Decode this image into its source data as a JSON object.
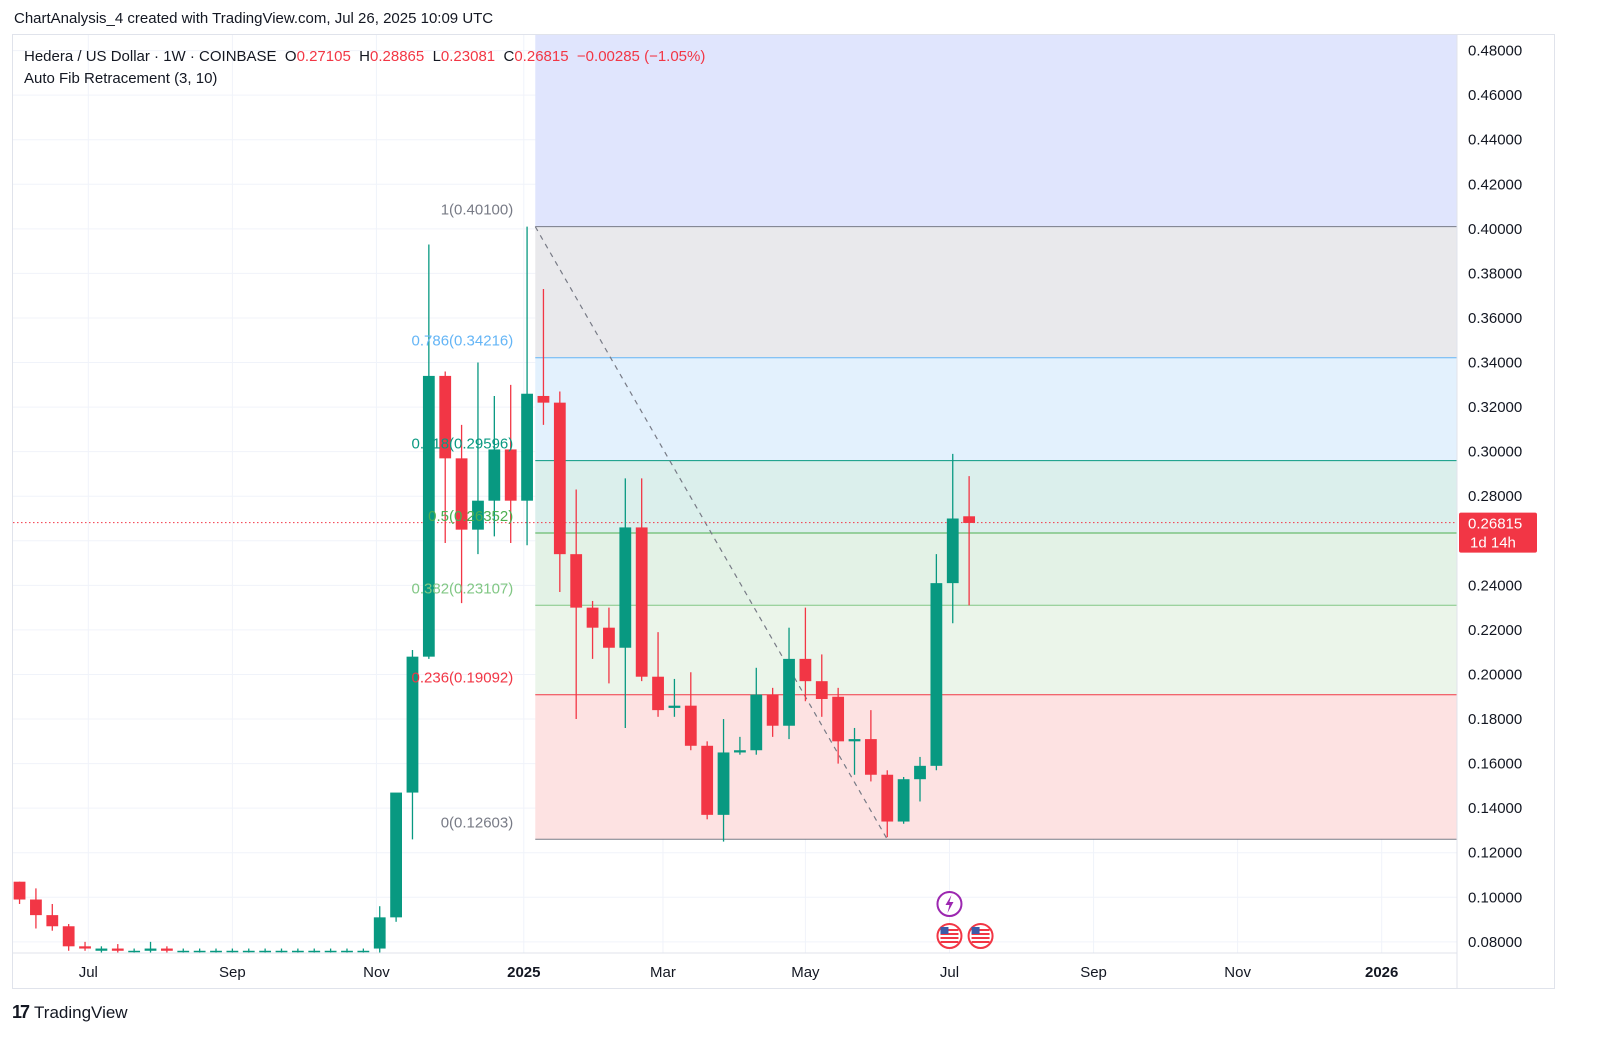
{
  "caption": "ChartAnalysis_4 created with TradingView.com, Jul 26, 2025 10:09 UTC",
  "legend": {
    "symbol": "Hedera / US Dollar · 1W · COINBASE",
    "o_label": "O",
    "o_value": "0.27105",
    "h_label": "H",
    "h_value": "0.28865",
    "l_label": "L",
    "l_value": "0.23081",
    "c_label": "C",
    "c_value": "0.26815",
    "change": "−0.00285 (−1.05%)",
    "indicator": "Auto Fib Retracement (3, 10)"
  },
  "branding": {
    "name": "TradingView",
    "logo_mark": "17"
  },
  "colors": {
    "up": "#089981",
    "down": "#f23645",
    "grid": "#f0f3fa",
    "axis_text": "#131722",
    "fib_ext": "#e0e5fd",
    "fib_1": "#e9e9ec",
    "fib_786": "#e3f1fd",
    "fib_618": "#dbefec",
    "fib_5": "#e3f2e6",
    "fib_382": "#ebf5ea",
    "fib_236": "#fde2e2"
  },
  "chart_data": {
    "type": "candlestick",
    "y_axis": {
      "min": 0.075,
      "max": 0.487,
      "ticks": [
        "0.48000",
        "0.46000",
        "0.44000",
        "0.42000",
        "0.40000",
        "0.38000",
        "0.36000",
        "0.34000",
        "0.32000",
        "0.30000",
        "0.28000",
        "0.26000",
        "0.24000",
        "0.22000",
        "0.20000",
        "0.18000",
        "0.16000",
        "0.14000",
        "0.12000",
        "0.10000",
        "0.08000"
      ],
      "tick_values": [
        0.48,
        0.46,
        0.44,
        0.42,
        0.4,
        0.38,
        0.36,
        0.34,
        0.32,
        0.3,
        0.28,
        0.26,
        0.24,
        0.22,
        0.2,
        0.18,
        0.16,
        0.14,
        0.12,
        0.1,
        0.08
      ]
    },
    "x_axis": {
      "ticks": [
        {
          "label": "Jul",
          "week": 4.2,
          "bold": false
        },
        {
          "label": "Sep",
          "week": 13.0,
          "bold": false
        },
        {
          "label": "Nov",
          "week": 21.8,
          "bold": false
        },
        {
          "label": "2025",
          "week": 30.8,
          "bold": true
        },
        {
          "label": "Mar",
          "week": 39.3,
          "bold": false
        },
        {
          "label": "May",
          "week": 48.0,
          "bold": false
        },
        {
          "label": "Jul",
          "week": 56.8,
          "bold": false
        },
        {
          "label": "Sep",
          "week": 65.6,
          "bold": false
        },
        {
          "label": "Nov",
          "week": 74.4,
          "bold": false
        },
        {
          "label": "2026",
          "week": 83.2,
          "bold": true
        }
      ],
      "week_min": -0.4,
      "week_max": 87.8
    },
    "current_price": {
      "value": 0.26815,
      "label": "0.26815",
      "countdown": "1d 14h"
    },
    "fib": {
      "start_week": 31.5,
      "end_week": 87.5,
      "levels": [
        {
          "ratio": "1",
          "price": 0.401,
          "label": "1(0.40100)",
          "color": "#787b86"
        },
        {
          "ratio": "0.786",
          "price": 0.34216,
          "label": "0.786(0.34216)",
          "color": "#64b5f6"
        },
        {
          "ratio": "0.618",
          "price": 0.29596,
          "label": "0.618(0.29596)",
          "color": "#089981"
        },
        {
          "ratio": "0.5",
          "price": 0.26352,
          "label": "0.5(0.26352)",
          "color": "#4caf50"
        },
        {
          "ratio": "0.382",
          "price": 0.23107,
          "label": "0.382(0.23107)",
          "color": "#81c784"
        },
        {
          "ratio": "0.236",
          "price": 0.19092,
          "label": "0.236(0.19092)",
          "color": "#f23645"
        },
        {
          "ratio": "0",
          "price": 0.12603,
          "label": "0(0.12603)",
          "color": "#787b86"
        }
      ],
      "trend_from": {
        "week": 31.5,
        "price": 0.401
      },
      "trend_to": {
        "week": 53.0,
        "price": 0.12603
      }
    },
    "candles": [
      {
        "o": 0.107,
        "h": 0.107,
        "l": 0.097,
        "c": 0.099
      },
      {
        "o": 0.099,
        "h": 0.104,
        "l": 0.086,
        "c": 0.092
      },
      {
        "o": 0.092,
        "h": 0.097,
        "l": 0.085,
        "c": 0.087
      },
      {
        "o": 0.087,
        "h": 0.088,
        "l": 0.076,
        "c": 0.078
      },
      {
        "o": 0.078,
        "h": 0.08,
        "l": 0.076,
        "c": 0.077
      },
      {
        "o": 0.076,
        "h": 0.078,
        "l": 0.075,
        "c": 0.077
      },
      {
        "o": 0.077,
        "h": 0.079,
        "l": 0.075,
        "c": 0.076
      },
      {
        "o": 0.076,
        "h": 0.077,
        "l": 0.075,
        "c": 0.076
      },
      {
        "o": 0.076,
        "h": 0.08,
        "l": 0.075,
        "c": 0.077
      },
      {
        "o": 0.077,
        "h": 0.078,
        "l": 0.075,
        "c": 0.076
      },
      {
        "o": 0.076,
        "h": 0.077,
        "l": 0.075,
        "c": 0.076
      },
      {
        "o": 0.076,
        "h": 0.077,
        "l": 0.075,
        "c": 0.076
      },
      {
        "o": 0.076,
        "h": 0.077,
        "l": 0.075,
        "c": 0.076
      },
      {
        "o": 0.076,
        "h": 0.077,
        "l": 0.075,
        "c": 0.076
      },
      {
        "o": 0.076,
        "h": 0.077,
        "l": 0.075,
        "c": 0.076
      },
      {
        "o": 0.076,
        "h": 0.077,
        "l": 0.075,
        "c": 0.076
      },
      {
        "o": 0.076,
        "h": 0.077,
        "l": 0.075,
        "c": 0.076
      },
      {
        "o": 0.076,
        "h": 0.077,
        "l": 0.075,
        "c": 0.076
      },
      {
        "o": 0.076,
        "h": 0.077,
        "l": 0.075,
        "c": 0.076
      },
      {
        "o": 0.076,
        "h": 0.077,
        "l": 0.075,
        "c": 0.076
      },
      {
        "o": 0.076,
        "h": 0.077,
        "l": 0.075,
        "c": 0.076
      },
      {
        "o": 0.076,
        "h": 0.077,
        "l": 0.075,
        "c": 0.076
      },
      {
        "o": 0.077,
        "h": 0.096,
        "l": 0.075,
        "c": 0.091
      },
      {
        "o": 0.091,
        "h": 0.146,
        "l": 0.089,
        "c": 0.147
      },
      {
        "o": 0.147,
        "h": 0.211,
        "l": 0.126,
        "c": 0.208
      },
      {
        "o": 0.208,
        "h": 0.393,
        "l": 0.207,
        "c": 0.334
      },
      {
        "o": 0.334,
        "h": 0.336,
        "l": 0.259,
        "c": 0.297
      },
      {
        "o": 0.297,
        "h": 0.312,
        "l": 0.232,
        "c": 0.265
      },
      {
        "o": 0.265,
        "h": 0.34,
        "l": 0.254,
        "c": 0.278
      },
      {
        "o": 0.278,
        "h": 0.325,
        "l": 0.262,
        "c": 0.301
      },
      {
        "o": 0.301,
        "h": 0.33,
        "l": 0.259,
        "c": 0.278
      },
      {
        "o": 0.278,
        "h": 0.401,
        "l": 0.258,
        "c": 0.326
      },
      {
        "o": 0.325,
        "h": 0.373,
        "l": 0.312,
        "c": 0.322
      },
      {
        "o": 0.322,
        "h": 0.327,
        "l": 0.237,
        "c": 0.254
      },
      {
        "o": 0.254,
        "h": 0.283,
        "l": 0.18,
        "c": 0.23
      },
      {
        "o": 0.23,
        "h": 0.233,
        "l": 0.207,
        "c": 0.221
      },
      {
        "o": 0.221,
        "h": 0.23,
        "l": 0.196,
        "c": 0.212
      },
      {
        "o": 0.212,
        "h": 0.288,
        "l": 0.176,
        "c": 0.266
      },
      {
        "o": 0.266,
        "h": 0.288,
        "l": 0.197,
        "c": 0.199
      },
      {
        "o": 0.199,
        "h": 0.219,
        "l": 0.181,
        "c": 0.184
      },
      {
        "o": 0.185,
        "h": 0.198,
        "l": 0.181,
        "c": 0.186
      },
      {
        "o": 0.186,
        "h": 0.201,
        "l": 0.166,
        "c": 0.168
      },
      {
        "o": 0.168,
        "h": 0.17,
        "l": 0.135,
        "c": 0.137
      },
      {
        "o": 0.137,
        "h": 0.18,
        "l": 0.125,
        "c": 0.165
      },
      {
        "o": 0.165,
        "h": 0.172,
        "l": 0.164,
        "c": 0.166
      },
      {
        "o": 0.166,
        "h": 0.203,
        "l": 0.164,
        "c": 0.191
      },
      {
        "o": 0.191,
        "h": 0.194,
        "l": 0.172,
        "c": 0.177
      },
      {
        "o": 0.177,
        "h": 0.221,
        "l": 0.171,
        "c": 0.207
      },
      {
        "o": 0.207,
        "h": 0.23,
        "l": 0.188,
        "c": 0.197
      },
      {
        "o": 0.197,
        "h": 0.209,
        "l": 0.181,
        "c": 0.189
      },
      {
        "o": 0.19,
        "h": 0.194,
        "l": 0.16,
        "c": 0.17
      },
      {
        "o": 0.17,
        "h": 0.176,
        "l": 0.155,
        "c": 0.171
      },
      {
        "o": 0.171,
        "h": 0.184,
        "l": 0.152,
        "c": 0.155
      },
      {
        "o": 0.155,
        "h": 0.157,
        "l": 0.127,
        "c": 0.134
      },
      {
        "o": 0.134,
        "h": 0.154,
        "l": 0.133,
        "c": 0.153
      },
      {
        "o": 0.153,
        "h": 0.163,
        "l": 0.143,
        "c": 0.159
      },
      {
        "o": 0.159,
        "h": 0.254,
        "l": 0.157,
        "c": 0.241
      },
      {
        "o": 0.241,
        "h": 0.299,
        "l": 0.223,
        "c": 0.27
      },
      {
        "o": 0.271,
        "h": 0.289,
        "l": 0.231,
        "c": 0.268
      }
    ],
    "events": [
      {
        "week": 56.8,
        "type": "earnings-bolt-icon"
      },
      {
        "week": 56.8,
        "type": "us-flag-icon"
      },
      {
        "week": 57.6,
        "type": "us-flag-icon"
      }
    ]
  }
}
